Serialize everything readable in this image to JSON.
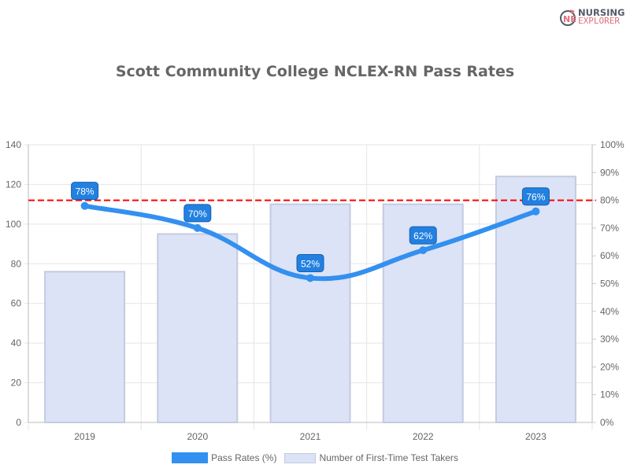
{
  "chart_data": {
    "type": "bar+line",
    "title": "Scott Community College NCLEX-RN Pass Rates",
    "categories": [
      "2019",
      "2020",
      "2021",
      "2022",
      "2023"
    ],
    "series": [
      {
        "name": "Pass Rates (%)",
        "type": "line",
        "axis": "right",
        "values": [
          78,
          70,
          52,
          62,
          76
        ],
        "data_labels": [
          "78%",
          "70%",
          "52%",
          "62%",
          "76%"
        ],
        "color": "#3390f0"
      },
      {
        "name": "Number of First-Time Test Takers",
        "type": "bar",
        "axis": "left",
        "values": [
          76,
          95,
          110,
          110,
          124
        ],
        "color": "#dce3f6"
      }
    ],
    "left_axis": {
      "ylim": [
        0,
        140
      ],
      "ticks": [
        "0",
        "20",
        "40",
        "60",
        "80",
        "100",
        "120",
        "140"
      ]
    },
    "right_axis": {
      "ylim": [
        0,
        100
      ],
      "ticks": [
        "0%",
        "10%",
        "20%",
        "30%",
        "40%",
        "50%",
        "60%",
        "70%",
        "80%",
        "90%",
        "100%"
      ]
    },
    "reference_line": {
      "value": 80,
      "axis": "right",
      "color": "#ff0000",
      "style": "dashed"
    },
    "grid": true,
    "legend_placement": "bottom"
  },
  "logo": {
    "line1": "NURSING",
    "line2": "EXPLORER"
  }
}
